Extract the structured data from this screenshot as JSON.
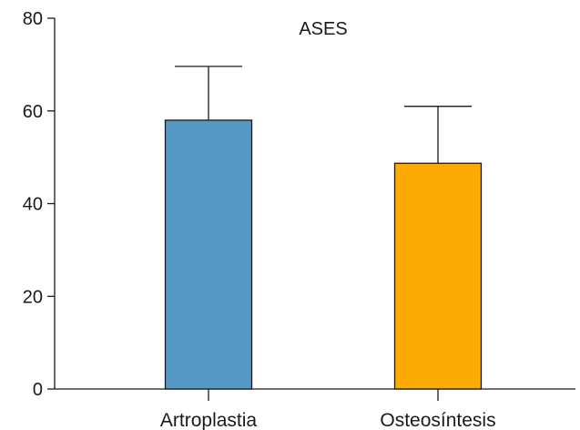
{
  "chart_data": {
    "type": "bar",
    "title": "ASES",
    "xlabel": "",
    "ylabel": "",
    "categories": [
      "Artroplastia",
      "Osteosíntesis"
    ],
    "values": [
      58,
      48.7
    ],
    "error_upper": [
      69.6,
      61
    ],
    "ylim": [
      0,
      80
    ],
    "yticks": [
      0,
      20,
      40,
      60,
      80
    ],
    "ytick_labels": [
      "0",
      "20",
      "40",
      "60",
      "80"
    ],
    "colors": [
      "#5499c4",
      "#fcab04"
    ],
    "grid": false,
    "legend": "none"
  }
}
